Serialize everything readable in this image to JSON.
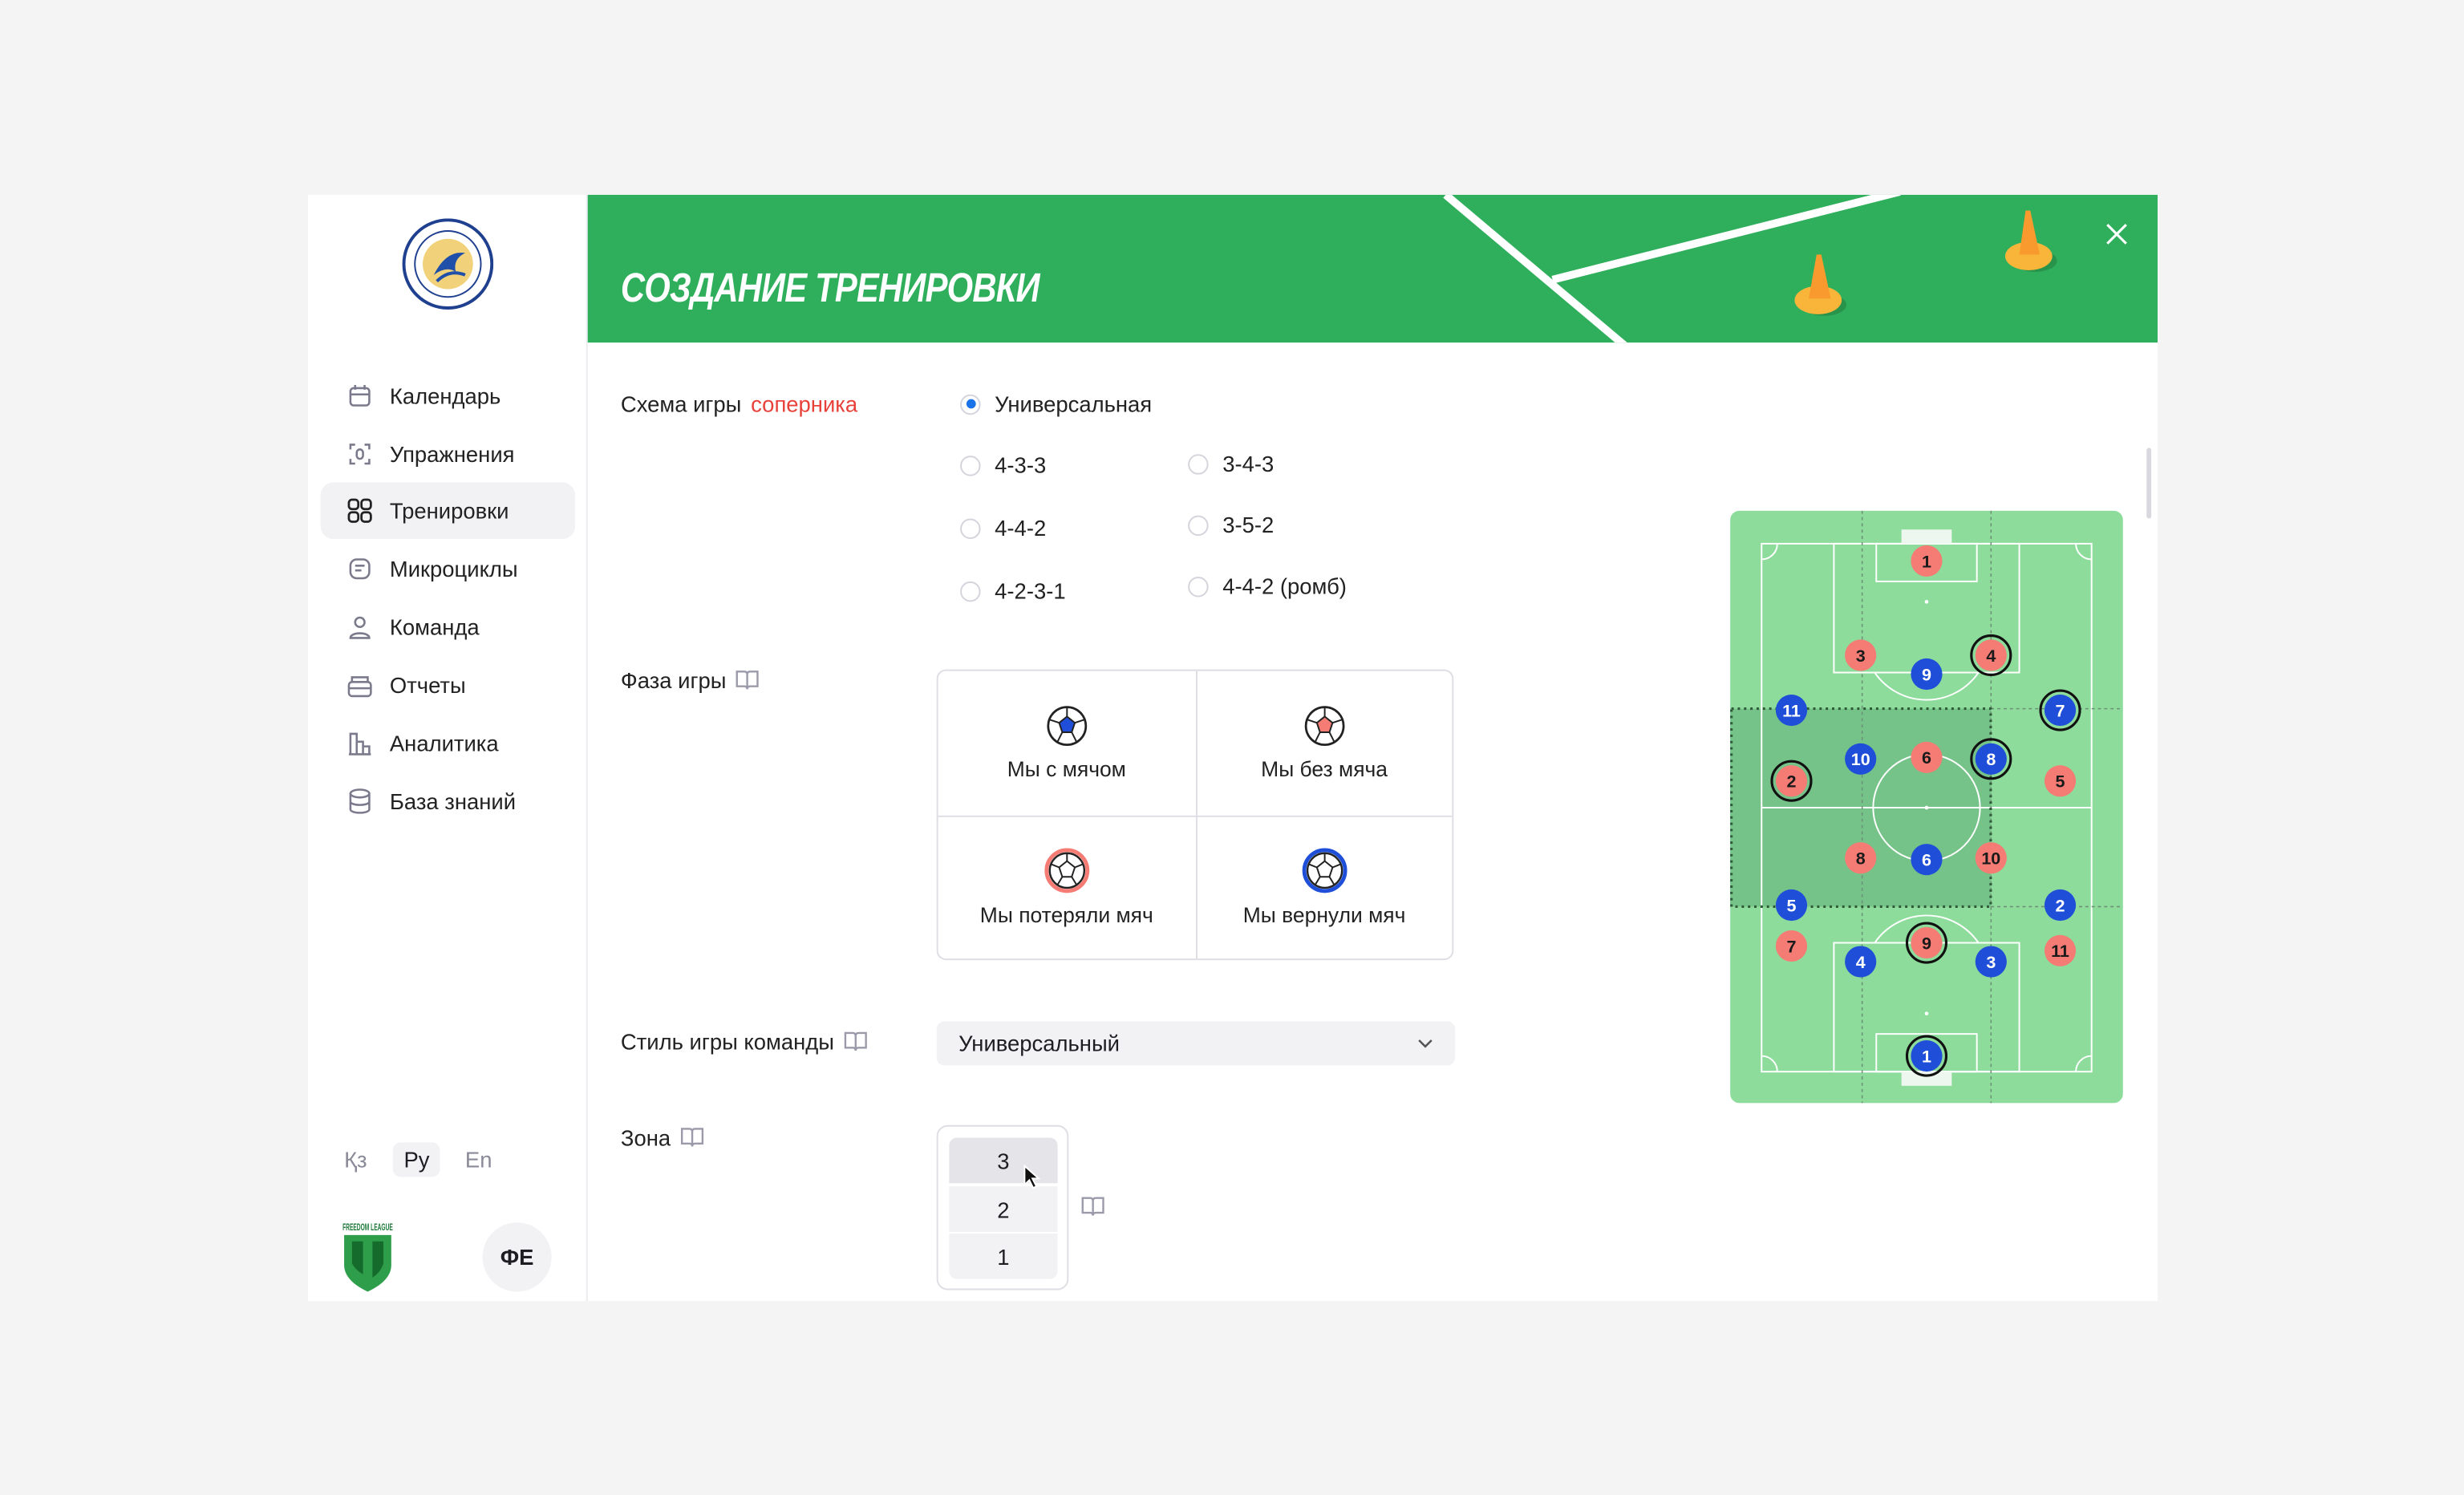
{
  "sidebar": {
    "logo_text": "FC QYZYLJAR PETROPAVL 1968",
    "items": [
      {
        "label": "Календарь",
        "icon": "calendar-icon"
      },
      {
        "label": "Упражнения",
        "icon": "exercise-icon"
      },
      {
        "label": "Тренировки",
        "icon": "grid-icon",
        "active": true
      },
      {
        "label": "Микроциклы",
        "icon": "microcycle-icon"
      },
      {
        "label": "Команда",
        "icon": "user-icon"
      },
      {
        "label": "Отчеты",
        "icon": "reports-icon"
      },
      {
        "label": "Аналитика",
        "icon": "analytics-icon"
      },
      {
        "label": "База знаний",
        "icon": "database-icon"
      }
    ],
    "languages": [
      {
        "label": "Қз"
      },
      {
        "label": "Ру",
        "active": true
      },
      {
        "label": "En"
      }
    ],
    "league_logo_text": "FREEDOM LEAGUE",
    "avatar_initials": "ФЕ"
  },
  "header": {
    "title": "СОЗДАНИЕ ТРЕНИРОВКИ",
    "close_icon": "close-icon",
    "color": "#2faf5c"
  },
  "form": {
    "scheme": {
      "label": "Схема игры",
      "label_accent": "соперника",
      "selected": "Универсальная",
      "options": [
        "Универсальная",
        "4-3-3",
        "4-4-2",
        "4-2-3-1",
        "3-4-3",
        "3-5-2",
        "4-4-2 (ромб)"
      ]
    },
    "phase": {
      "label": "Фаза игры",
      "options": [
        {
          "label": "Мы с мячом",
          "icon": "ball-blue-center-icon"
        },
        {
          "label": "Мы без мяча",
          "icon": "ball-red-center-icon"
        },
        {
          "label": "Мы потеряли мяч",
          "icon": "ball-red-ring-icon"
        },
        {
          "label": "Мы вернули мяч",
          "icon": "ball-blue-ring-icon"
        }
      ]
    },
    "style": {
      "label": "Стиль игры команды",
      "value": "Универсальный"
    },
    "zone": {
      "label": "Зона",
      "options": [
        "3",
        "2",
        "1"
      ],
      "hovered": "3"
    }
  },
  "pitch": {
    "colors": {
      "grass": "#8ddc9b",
      "zone": "#76c389",
      "red": "#f47c74",
      "blue": "#1f4fd8"
    },
    "red_players": [
      {
        "number": "1"
      },
      {
        "number": "3"
      },
      {
        "number": "4",
        "highlighted": true
      },
      {
        "number": "6"
      },
      {
        "number": "2",
        "highlighted": true
      },
      {
        "number": "5"
      },
      {
        "number": "8"
      },
      {
        "number": "10"
      },
      {
        "number": "7"
      },
      {
        "number": "9",
        "highlighted": true
      },
      {
        "number": "11"
      }
    ],
    "blue_players": [
      {
        "number": "9"
      },
      {
        "number": "11"
      },
      {
        "number": "7",
        "highlighted": true
      },
      {
        "number": "10"
      },
      {
        "number": "8",
        "highlighted": true
      },
      {
        "number": "6"
      },
      {
        "number": "5"
      },
      {
        "number": "2"
      },
      {
        "number": "4"
      },
      {
        "number": "3"
      },
      {
        "number": "1",
        "highlighted": true
      }
    ]
  }
}
